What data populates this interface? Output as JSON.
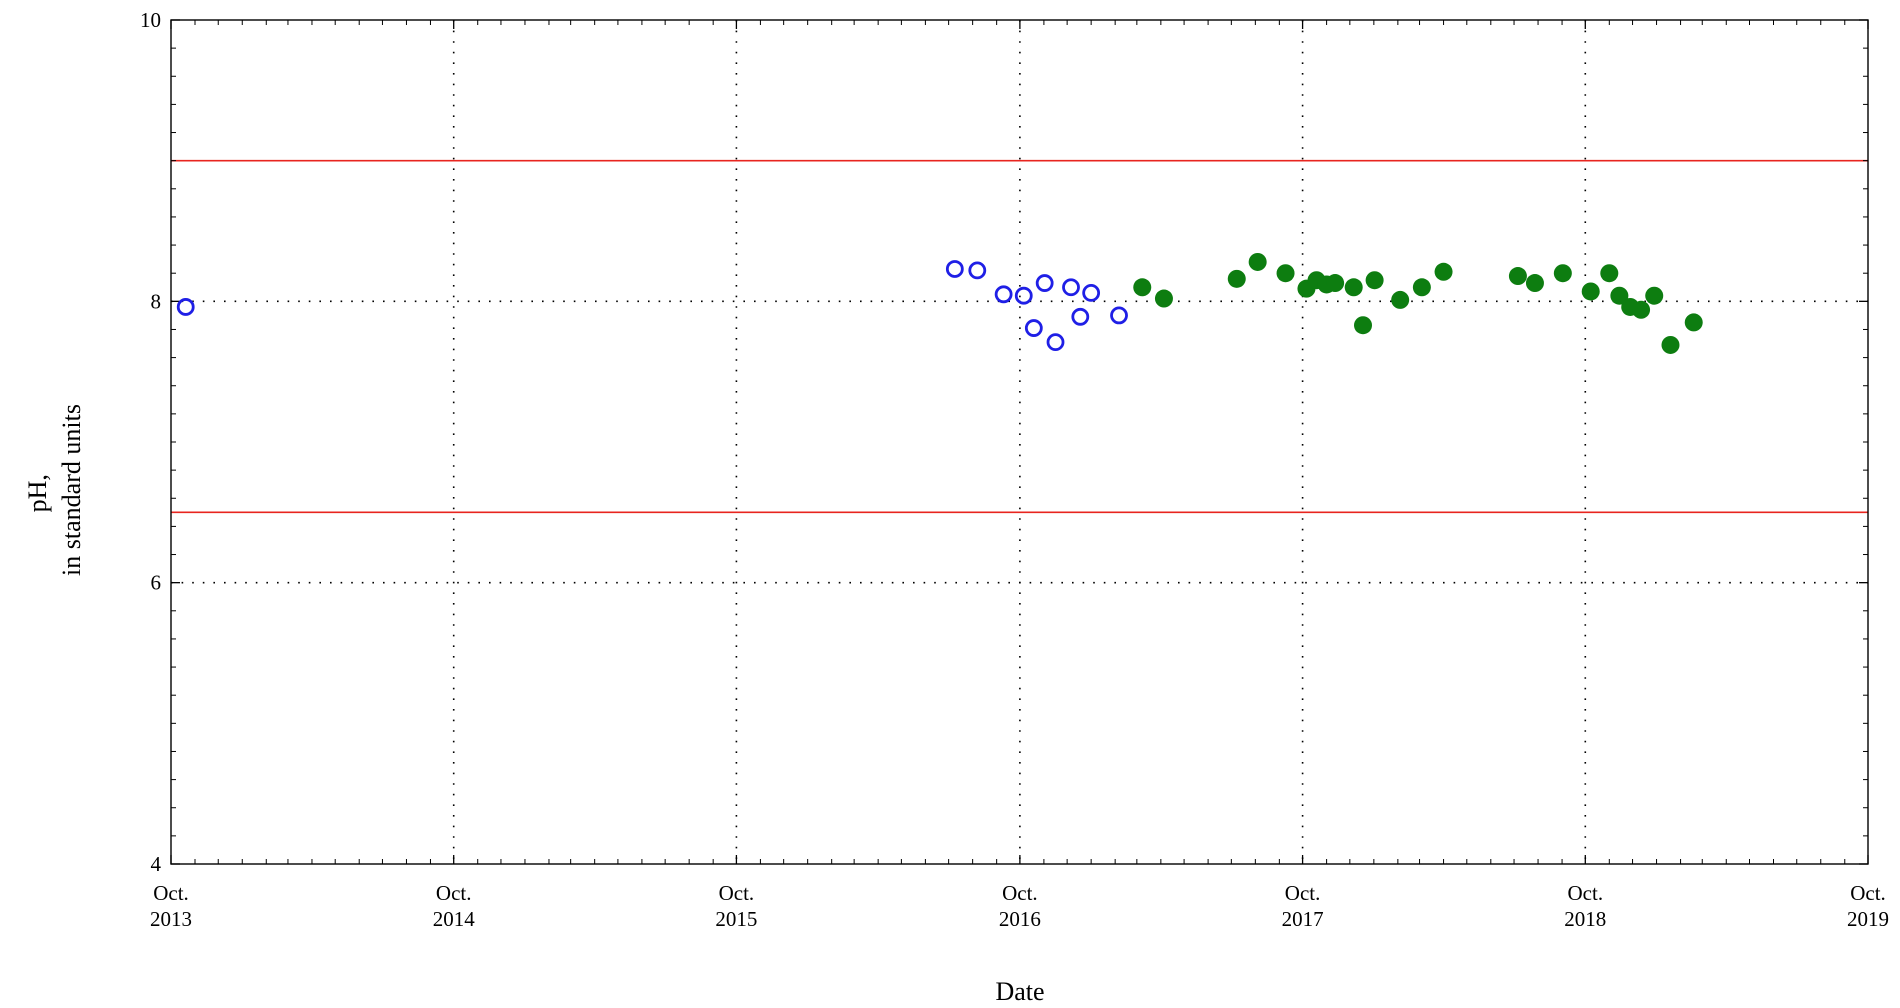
{
  "chart_data": {
    "type": "scatter",
    "title": "",
    "xlabel": "Date",
    "ylabel_line1": "pH,",
    "ylabel_line2": "in standard units",
    "xlim": [
      "2013-10-01",
      "2019-10-01"
    ],
    "ylim": [
      4,
      10
    ],
    "yticks": [
      4,
      6,
      8,
      10
    ],
    "xticks": [
      {
        "date": "2013-10-01",
        "line1": "Oct.",
        "line2": "2013"
      },
      {
        "date": "2014-10-01",
        "line1": "Oct.",
        "line2": "2014"
      },
      {
        "date": "2015-10-01",
        "line1": "Oct.",
        "line2": "2015"
      },
      {
        "date": "2016-10-01",
        "line1": "Oct.",
        "line2": "2016"
      },
      {
        "date": "2017-10-01",
        "line1": "Oct.",
        "line2": "2017"
      },
      {
        "date": "2018-10-01",
        "line1": "Oct.",
        "line2": "2018"
      },
      {
        "date": "2019-10-01",
        "line1": "Oct.",
        "line2": "2019"
      }
    ],
    "grid": true,
    "reference_lines": [
      {
        "y": 9.0,
        "color": "#e8251f"
      },
      {
        "y": 6.5,
        "color": "#e8251f"
      }
    ],
    "series": [
      {
        "marker": "open-circle",
        "color": "#1f1fe6",
        "points": [
          {
            "x": "2013-10-20",
            "y": 7.96
          },
          {
            "x": "2016-07-09",
            "y": 8.23
          },
          {
            "x": "2016-08-07",
            "y": 8.22
          },
          {
            "x": "2016-09-10",
            "y": 8.05
          },
          {
            "x": "2016-10-06",
            "y": 8.04
          },
          {
            "x": "2016-10-19",
            "y": 7.81
          },
          {
            "x": "2016-11-02",
            "y": 8.13
          },
          {
            "x": "2016-11-16",
            "y": 7.71
          },
          {
            "x": "2016-12-06",
            "y": 8.1
          },
          {
            "x": "2016-12-18",
            "y": 7.89
          },
          {
            "x": "2017-01-01",
            "y": 8.06
          },
          {
            "x": "2017-02-06",
            "y": 7.9
          }
        ]
      },
      {
        "marker": "filled-circle",
        "color": "#0d7d10",
        "points": [
          {
            "x": "2017-03-08",
            "y": 8.1
          },
          {
            "x": "2017-04-05",
            "y": 8.02
          },
          {
            "x": "2017-07-08",
            "y": 8.16
          },
          {
            "x": "2017-08-04",
            "y": 8.28
          },
          {
            "x": "2017-09-09",
            "y": 8.2
          },
          {
            "x": "2017-10-06",
            "y": 8.09
          },
          {
            "x": "2017-10-19",
            "y": 8.15
          },
          {
            "x": "2017-11-01",
            "y": 8.12
          },
          {
            "x": "2017-11-12",
            "y": 8.13
          },
          {
            "x": "2017-12-06",
            "y": 8.1
          },
          {
            "x": "2017-12-18",
            "y": 7.83
          },
          {
            "x": "2018-01-02",
            "y": 8.15
          },
          {
            "x": "2018-02-04",
            "y": 8.01
          },
          {
            "x": "2018-03-04",
            "y": 8.1
          },
          {
            "x": "2018-04-01",
            "y": 8.21
          },
          {
            "x": "2018-07-06",
            "y": 8.18
          },
          {
            "x": "2018-07-28",
            "y": 8.13
          },
          {
            "x": "2018-09-02",
            "y": 8.2
          },
          {
            "x": "2018-10-08",
            "y": 8.07
          },
          {
            "x": "2018-11-01",
            "y": 8.2
          },
          {
            "x": "2018-11-14",
            "y": 8.04
          },
          {
            "x": "2018-11-28",
            "y": 7.96
          },
          {
            "x": "2018-12-12",
            "y": 7.94
          },
          {
            "x": "2018-12-29",
            "y": 8.04
          },
          {
            "x": "2019-01-19",
            "y": 7.69
          },
          {
            "x": "2019-02-18",
            "y": 7.85
          }
        ]
      }
    ]
  }
}
